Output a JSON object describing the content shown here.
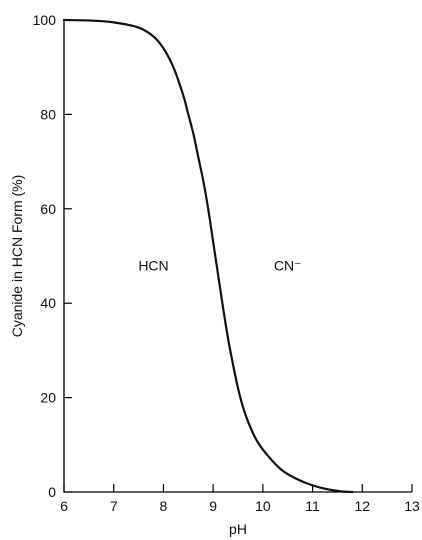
{
  "chart_data": {
    "type": "line",
    "xlabel": "pH",
    "ylabel": "Cyanide in HCN Form (%)",
    "xlim": [
      6,
      13
    ],
    "ylim": [
      0,
      100
    ],
    "x_ticks": [
      6,
      7,
      8,
      9,
      10,
      11,
      12,
      13
    ],
    "y_ticks": [
      0,
      20,
      40,
      60,
      80,
      100
    ],
    "grid": false,
    "series": [
      {
        "x": [
          6.0,
          6.5,
          7.0,
          7.5,
          7.8,
          8.0,
          8.2,
          8.4,
          8.5,
          8.6,
          8.7,
          8.8,
          8.9,
          9.0,
          9.1,
          9.2,
          9.3,
          9.4,
          9.5,
          9.6,
          9.7,
          9.8,
          9.9,
          10.0,
          10.2,
          10.4,
          10.6,
          10.8,
          11.0,
          11.2,
          11.4,
          11.6,
          11.8
        ],
        "y": [
          100.0,
          99.9,
          99.5,
          98.4,
          96.5,
          94.0,
          90.0,
          84.0,
          80.0,
          76.0,
          71.0,
          66.0,
          60.0,
          53.0,
          46.0,
          39.0,
          32.5,
          27.0,
          22.0,
          18.0,
          15.0,
          12.5,
          10.5,
          9.0,
          6.5,
          4.5,
          3.2,
          2.2,
          1.4,
          0.8,
          0.4,
          0.1,
          0.0
        ]
      }
    ],
    "annotations": [
      {
        "text": "HCN",
        "x": 7.8,
        "y": 48
      },
      {
        "text": "CN⁻",
        "x": 10.5,
        "y": 48
      }
    ],
    "color": "#111111"
  }
}
